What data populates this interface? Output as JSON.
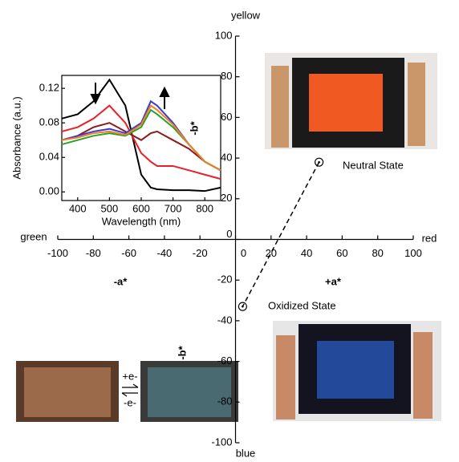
{
  "chart_data": [
    {
      "type": "scatter",
      "x": [
        47,
        4
      ],
      "values": [
        38,
        -33
      ],
      "xlim": [
        -100,
        100
      ],
      "ylim": [
        -100,
        100
      ],
      "xticks": [
        -100,
        -80,
        -60,
        -40,
        -20,
        0,
        20,
        40,
        60,
        80,
        100
      ],
      "yticks": [
        100,
        80,
        60,
        40,
        20,
        0,
        -20,
        -40,
        -60,
        -80,
        -100
      ],
      "color": "#000000",
      "annotations": [
        "yellow",
        "blue",
        "green",
        "red",
        "-a*",
        "+a*",
        "-b*",
        "Neutral State",
        "Oxidized State",
        "+e-",
        "-e-"
      ]
    },
    {
      "type": "line",
      "xlabel": "Wavelength (nm)",
      "ylabel": "Absorbance (a.u.)",
      "x": [
        350,
        400,
        450,
        500,
        550,
        600,
        630,
        650,
        700,
        750,
        800,
        850
      ],
      "xlim": [
        350,
        850
      ],
      "ylim": [
        -0.01,
        0.135
      ],
      "xticks": [
        400,
        500,
        600,
        700,
        800
      ],
      "yticks": [
        {
          "value": 0,
          "label": "0.00"
        },
        0.04,
        0.08,
        0.12
      ],
      "series": [
        {
          "color": "#000000",
          "values": [
            0.085,
            0.09,
            0.105,
            0.13,
            0.1,
            0.02,
            0.005,
            0.003,
            0.002,
            0.002,
            0.001,
            0.005
          ]
        },
        {
          "color": "#e8202a",
          "values": [
            0.07,
            0.075,
            0.085,
            0.1,
            0.08,
            0.045,
            0.035,
            0.03,
            0.03,
            0.025,
            0.02,
            0.015
          ]
        },
        {
          "color": "#8b1a1a",
          "values": [
            0.06,
            0.065,
            0.075,
            0.08,
            0.07,
            0.06,
            0.068,
            0.07,
            0.06,
            0.05,
            0.035,
            0.025
          ]
        },
        {
          "color": "#2ca02c",
          "values": [
            0.055,
            0.06,
            0.065,
            0.068,
            0.065,
            0.075,
            0.095,
            0.09,
            0.075,
            0.055,
            0.035,
            0.025
          ]
        },
        {
          "color": "#3b3bd6",
          "values": [
            0.06,
            0.065,
            0.07,
            0.073,
            0.068,
            0.08,
            0.105,
            0.1,
            0.08,
            0.055,
            0.035,
            0.025
          ]
        },
        {
          "color": "#f08020",
          "values": [
            0.06,
            0.063,
            0.068,
            0.07,
            0.066,
            0.078,
            0.1,
            0.095,
            0.078,
            0.055,
            0.035,
            0.025
          ]
        }
      ]
    }
  ]
}
